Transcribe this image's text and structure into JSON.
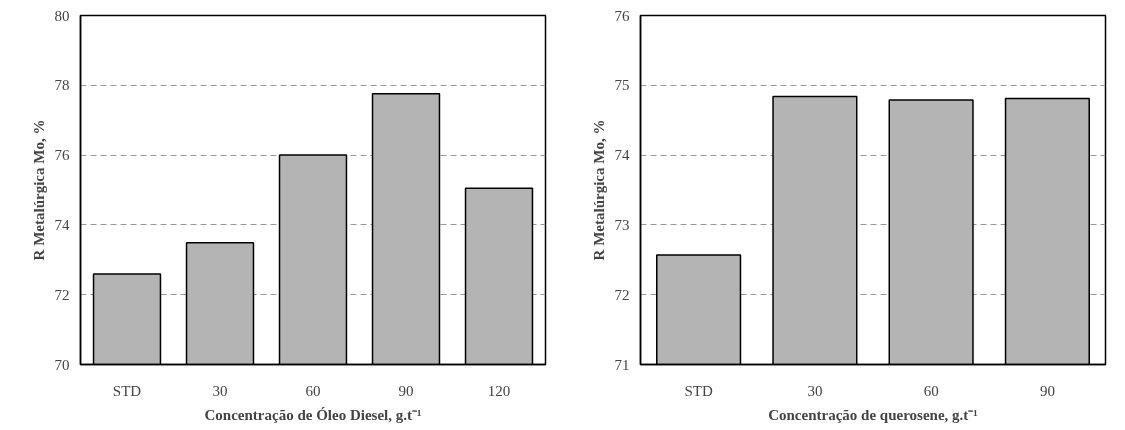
{
  "chart_data": [
    {
      "type": "bar",
      "xlabel": "Concentração de Óleo Diesel, g.t⁻¹",
      "ylabel": "R Metalúrgica Mo, %",
      "categories": [
        "STD",
        "30",
        "60",
        "90",
        "120"
      ],
      "values": [
        72.59,
        73.49,
        76.0,
        77.76,
        75.05
      ],
      "color": "#b4b4b4",
      "ylim": [
        70,
        80
      ],
      "yticks": [
        70,
        72,
        74,
        76,
        78,
        80
      ],
      "grid": "y"
    },
    {
      "type": "bar",
      "xlabel": "Concentração de querosene, g.t⁻¹",
      "ylabel": "R Metalúrgica Mo, %",
      "categories": [
        "STD",
        "30",
        "60",
        "90"
      ],
      "values": [
        72.57,
        74.84,
        74.79,
        74.81
      ],
      "color": "#b4b4b4",
      "ylim": [
        71,
        76
      ],
      "yticks": [
        71,
        72,
        73,
        74,
        75,
        76
      ],
      "grid": "y"
    }
  ]
}
